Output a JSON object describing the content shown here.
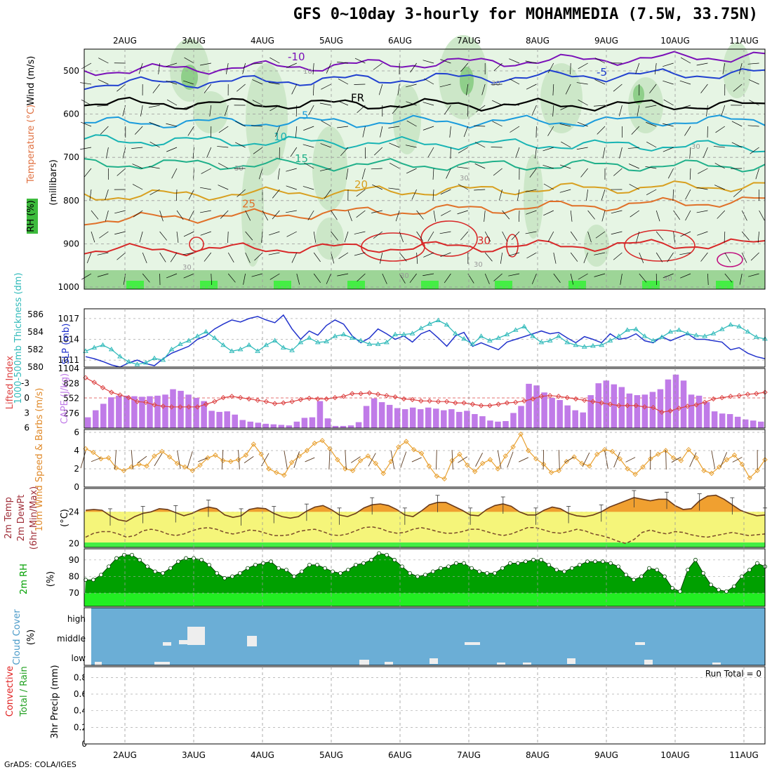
{
  "title": "GFS 0~10day 3-hourly for MOHAMMEDIA (7.5W, 33.75N)",
  "footer": "GrADS: COLA/IGES",
  "day_labels": [
    "2AUG",
    "3AUG",
    "4AUG",
    "5AUG",
    "6AUG",
    "7AUG",
    "8AUG",
    "9AUG",
    "10AUG",
    "11AUG"
  ],
  "colors": {
    "rh_light": "#e6f5e4",
    "rh_mid": "#c9e6c4",
    "rh_dark": "#8fcf8a",
    "rh_bright": "#44ee44",
    "cape": "#c07be8",
    "lifted": "#dd4444",
    "slp": "#2233cc",
    "thickness": "#33bbbb",
    "wind10": "#e8a030",
    "temp_max": "#f0a030",
    "dewpt": "#f5f57a",
    "rh2m": "#00a000",
    "cloud_bg": "#6baed6",
    "cloud_patch": "#eeeeee"
  },
  "chart_data": [
    {
      "type": "contour",
      "panel": "upper-air",
      "ylabel": [
        "Wind (m/s)",
        "Temperature (°C)",
        "RH (%)",
        "(millibars)"
      ],
      "y_ticks": [
        500,
        600,
        700,
        800,
        900,
        1000
      ],
      "temperature_isotherms": [
        {
          "value": -10,
          "label": "-10",
          "p_start": 500,
          "p_end": 465
        },
        {
          "value": -5,
          "label": "-5",
          "p_start": 530,
          "p_end": 505
        },
        {
          "value": 0,
          "label": "FR",
          "p_start": 575,
          "p_end": 580
        },
        {
          "value": 5,
          "label": "5",
          "p_start": 620,
          "p_end": 615
        },
        {
          "value": 10,
          "label": "10",
          "p_start": 660,
          "p_end": 675
        },
        {
          "value": 15,
          "label": "15",
          "p_start": 715,
          "p_end": 720
        },
        {
          "value": 20,
          "label": "20",
          "p_start": 790,
          "p_end": 765
        },
        {
          "value": 25,
          "label": "25",
          "p_start": 845,
          "p_end": 800
        },
        {
          "value": 30,
          "label": "30",
          "p_start": 915,
          "p_end": 900
        }
      ],
      "rh_labels": [
        "10",
        "30",
        "30",
        "30",
        "30",
        "30",
        "30",
        "30",
        "30"
      ]
    },
    {
      "type": "line",
      "panel": "slp-thickness",
      "series": [
        {
          "name": "SLP (mb)",
          "y_ticks": [
            1011,
            1014,
            1017
          ],
          "values": [
            1011.5,
            1011.2,
            1010.8,
            1010.3,
            1010.0,
            1010.6,
            1011.0,
            1010.5,
            1010.2,
            1011.2,
            1012.0,
            1012.5,
            1013.0,
            1014.0,
            1014.5,
            1015.5,
            1016.2,
            1016.8,
            1016.5,
            1017.0,
            1017.3,
            1016.8,
            1016.4,
            1017.5,
            1015.5,
            1014.0,
            1015.2,
            1014.6,
            1016.0,
            1016.8,
            1016.2,
            1014.5,
            1013.5,
            1014.2,
            1015.5,
            1014.8,
            1014.0,
            1014.5,
            1013.6,
            1014.8,
            1015.3,
            1014.2,
            1013.0,
            1014.5,
            1015.0,
            1013.0,
            1013.5,
            1013.0,
            1012.5,
            1013.6,
            1014.0,
            1014.4,
            1014.8,
            1015.2,
            1014.8,
            1015.0,
            1014.2,
            1013.5,
            1014.4,
            1014.0,
            1013.5,
            1014.8,
            1014.0,
            1014.2,
            1014.8,
            1013.8,
            1013.5,
            1014.4,
            1013.8,
            1014.3,
            1014.8,
            1014.0,
            1014.0,
            1013.8,
            1013.6,
            1012.5,
            1012.8,
            1012.0,
            1011.5,
            1011.2
          ]
        },
        {
          "name": "1000-500mb Thickness (dm)",
          "y_ticks": [
            580,
            582,
            584,
            586
          ],
          "values": [
            581.8,
            582.2,
            582.5,
            582.0,
            581.2,
            580.6,
            580.3,
            580.5,
            581.0,
            580.8,
            582.0,
            582.6,
            583.0,
            583.5,
            584.0,
            583.3,
            582.5,
            581.8,
            582.0,
            582.5,
            581.8,
            582.5,
            583.0,
            582.2,
            581.9,
            582.8,
            583.3,
            582.8,
            582.9,
            583.5,
            583.7,
            583.3,
            583.0,
            582.6,
            582.6,
            582.8,
            583.7,
            583.7,
            583.8,
            584.4,
            584.9,
            585.3,
            584.8,
            583.8,
            583.2,
            582.6,
            583.5,
            583.0,
            583.3,
            583.7,
            584.2,
            584.6,
            583.5,
            582.8,
            583.0,
            583.5,
            582.8,
            582.5,
            582.3,
            582.4,
            582.5,
            583.0,
            583.5,
            584.2,
            584.3,
            583.5,
            583.0,
            583.4,
            584.0,
            584.2,
            583.8,
            583.6,
            583.5,
            583.8,
            584.3,
            584.8,
            584.6,
            584.0,
            583.4,
            583.2
          ]
        }
      ]
    },
    {
      "type": "bar",
      "panel": "cape-lifted",
      "series": [
        {
          "name": "CAPE (J/kg)",
          "y_ticks": [
            276,
            552,
            828,
            1104
          ],
          "values": [
            200,
            330,
            450,
            570,
            600,
            600,
            590,
            580,
            590,
            600,
            620,
            720,
            690,
            620,
            560,
            500,
            320,
            300,
            310,
            250,
            150,
            120,
            100,
            80,
            70,
            60,
            50,
            120,
            190,
            200,
            500,
            180,
            40,
            40,
            50,
            110,
            410,
            550,
            480,
            430,
            370,
            350,
            380,
            350,
            380,
            360,
            330,
            350,
            300,
            320,
            260,
            220,
            140,
            120,
            130,
            280,
            410,
            820,
            790,
            660,
            560,
            520,
            420,
            330,
            290,
            610,
            830,
            880,
            810,
            760,
            640,
            610,
            620,
            670,
            720,
            900,
            990,
            880,
            620,
            600,
            480,
            310,
            270,
            260,
            210,
            160,
            140,
            120
          ]
        },
        {
          "name": "Lifted Index",
          "y_ticks": [
            -3,
            0,
            3,
            6
          ],
          "values": [
            4.6,
            3.9,
            3.1,
            2.4,
            2.0,
            1.6,
            1.0,
            0.9,
            0.5,
            0.3,
            0.2,
            0.2,
            0.2,
            0.2,
            0.6,
            1.0,
            1.6,
            1.8,
            1.6,
            1.4,
            1.2,
            1.0,
            0.7,
            0.8,
            1.0,
            1.3,
            1.5,
            1.4,
            1.4,
            1.6,
            1.8,
            2.2,
            2.2,
            2.3,
            2.1,
            1.9,
            1.7,
            1.4,
            1.3,
            1.1,
            1.1,
            1.0,
            1.0,
            0.8,
            0.8,
            0.6,
            0.4,
            0.4,
            0.6,
            0.8,
            0.9,
            1.1,
            1.4,
            1.8,
            1.9,
            1.8,
            1.6,
            1.4,
            1.2,
            1.0,
            0.8,
            0.6,
            0.4,
            0.4,
            0.4,
            0.2,
            0.1,
            -0.6,
            -0.4,
            0.0,
            0.3,
            0.5,
            0.9,
            1.4,
            1.6,
            1.8,
            1.9,
            2.1,
            2.2,
            2.4
          ]
        }
      ]
    },
    {
      "type": "line",
      "panel": "wind10m",
      "ylabel": "10m Wind Speed & Barbs (m/s)",
      "y_ticks": [
        0,
        2,
        4,
        6
      ],
      "series": [
        {
          "name": "10m Wind Speed",
          "values": [
            4.2,
            3.8,
            3.1,
            3.2,
            2.1,
            1.8,
            2.2,
            2.5,
            2.3,
            3.4,
            3.9,
            3.3,
            2.6,
            2.2,
            1.8,
            2.4,
            3.2,
            3.5,
            2.9,
            2.8,
            3.0,
            3.5,
            4.7,
            3.6,
            2.0,
            1.6,
            1.3,
            2.7,
            3.4,
            4.0,
            4.8,
            5.1,
            4.2,
            3.0,
            2.0,
            1.8,
            2.9,
            3.4,
            2.6,
            1.5,
            2.8,
            4.4,
            5.0,
            4.1,
            3.7,
            2.3,
            1.2,
            0.9,
            2.9,
            3.6,
            2.4,
            1.7,
            2.6,
            3.0,
            2.0,
            3.4,
            4.4,
            5.8,
            4.0,
            3.1,
            2.5,
            1.6,
            1.8,
            2.8,
            3.3,
            2.6,
            2.3,
            3.6,
            4.1,
            3.9,
            3.1,
            2.0,
            1.4,
            2.2,
            3.1,
            3.6,
            4.0,
            3.2,
            2.9,
            4.1,
            3.2,
            1.8,
            1.5,
            2.2,
            3.0,
            3.5,
            2.5,
            1.0,
            1.8,
            3.0
          ]
        }
      ]
    },
    {
      "type": "area",
      "panel": "temp2m",
      "ylabel": "2m Temp 2m DewPt (6hr Min/Max) (°C)",
      "y_ticks": [
        20,
        24
      ],
      "series": [
        {
          "name": "2m Temp (6hr Max)",
          "values": [
            24.2,
            24.3,
            24.2,
            23.5,
            23.0,
            22.8,
            23.4,
            23.8,
            24.0,
            24.4,
            24.3,
            23.9,
            23.5,
            23.8,
            24.3,
            24.6,
            24.4,
            23.6,
            23.3,
            23.5,
            24.3,
            24.5,
            24.4,
            23.8,
            23.4,
            23.2,
            23.4,
            24.1,
            24.6,
            24.8,
            24.3,
            23.6,
            23.4,
            23.8,
            24.5,
            24.9,
            25.0,
            24.8,
            24.3,
            23.6,
            23.4,
            24.1,
            24.9,
            25.2,
            25.2,
            24.7,
            24.2,
            23.6,
            23.5,
            24.3,
            24.8,
            25.0,
            24.7,
            24.0,
            23.6,
            23.6,
            24.2,
            24.6,
            24.4,
            23.8,
            23.5,
            23.4,
            23.6,
            24.0,
            24.6,
            25.0,
            25.4,
            25.8,
            25.6,
            25.4,
            25.6,
            25.6,
            24.8,
            24.3,
            24.4,
            25.4,
            26.0,
            26.1,
            25.6,
            24.9,
            24.2,
            23.8,
            23.5,
            23.6
          ]
        },
        {
          "name": "2m DewPt",
          "values": [
            20.8,
            21.3,
            21.5,
            21.5,
            21.2,
            20.8,
            21.0,
            21.6,
            21.8,
            21.6,
            21.2,
            21.0,
            21.2,
            21.6,
            21.9,
            22.0,
            21.8,
            21.4,
            21.2,
            21.4,
            21.7,
            21.6,
            21.3,
            21.0,
            21.0,
            21.1,
            21.5,
            21.7,
            21.8,
            21.5,
            21.1,
            21.0,
            21.2,
            21.6,
            22.0,
            22.1,
            21.9,
            21.5,
            21.3,
            21.4,
            21.8,
            22.0,
            21.8,
            21.5,
            21.3,
            21.3,
            21.5,
            21.8,
            21.8,
            21.5,
            21.2,
            21.0,
            21.2,
            21.6,
            22.0,
            22.0,
            21.7,
            21.4,
            21.3,
            21.5,
            21.8,
            21.6,
            21.2,
            21.0,
            20.7,
            20.3,
            20.0,
            20.5,
            21.4,
            21.7,
            21.4,
            21.2,
            21.5,
            21.4,
            21.1,
            20.9,
            20.8,
            21.0,
            21.2,
            21.4,
            21.2,
            21.0,
            21.1,
            21.2
          ]
        }
      ]
    },
    {
      "type": "area",
      "panel": "rh2m",
      "ylabel": "2m RH (%)",
      "y_ticks": [
        70,
        80,
        90
      ],
      "series": [
        {
          "name": "2m RH",
          "values": [
            78,
            78,
            81,
            86,
            91,
            93,
            93,
            90,
            86,
            83,
            82,
            85,
            89,
            91,
            91,
            90,
            87,
            82,
            79,
            80,
            82,
            85,
            87,
            88,
            89,
            85,
            84,
            80,
            83,
            87,
            87,
            85,
            83,
            82,
            84,
            87,
            88,
            90,
            94,
            93,
            90,
            86,
            82,
            80,
            81,
            83,
            85,
            86,
            88,
            88,
            85,
            83,
            82,
            82,
            85,
            88,
            88,
            89,
            90,
            90,
            87,
            84,
            83,
            85,
            87,
            89,
            89,
            89,
            88,
            86,
            81,
            78,
            80,
            85,
            84,
            80,
            73,
            71,
            84,
            90,
            82,
            75,
            72,
            71,
            74,
            80,
            84,
            88,
            86
          ]
        }
      ]
    },
    {
      "type": "heatmap",
      "panel": "cloud",
      "ylabel": "Cloud Cover (%)",
      "levels": [
        "high",
        "middle",
        "low"
      ]
    },
    {
      "type": "bar",
      "panel": "precip",
      "ylabel": "3hr Precip (mm)",
      "series_labels": [
        "Total / Rain",
        "Convective"
      ],
      "y_ticks": [
        0,
        0.2,
        0.4,
        0.6,
        0.8
      ],
      "annotation": "Run Total = 0",
      "values": []
    }
  ]
}
